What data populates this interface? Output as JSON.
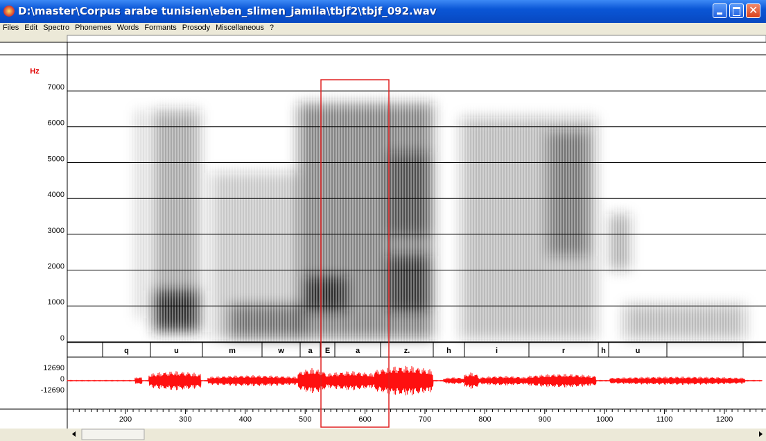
{
  "window": {
    "title": "D:\\master\\Corpus arabe tunisien\\eben_slimen_jamila\\tbjf2\\tbjf_092.wav"
  },
  "menu": [
    "Files",
    "Edit",
    "Spectro",
    "Phonemes",
    "Words",
    "Formants",
    "Prosody",
    "Miscellaneous",
    "?"
  ],
  "spectrogram": {
    "unit": "Hz",
    "ticks": [
      0,
      1000,
      2000,
      3000,
      4000,
      5000,
      6000,
      7000
    ]
  },
  "phonemes": [
    "q",
    "u",
    "m",
    "w",
    "a",
    "E",
    "a",
    "z.",
    "h",
    "i",
    "r",
    "h",
    "u"
  ],
  "waveform": {
    "ticks": [
      12690,
      0,
      -12690
    ]
  },
  "time_axis": {
    "ticks": [
      200,
      300,
      400,
      500,
      600,
      700,
      800,
      900,
      1000,
      1100,
      1200
    ]
  }
}
